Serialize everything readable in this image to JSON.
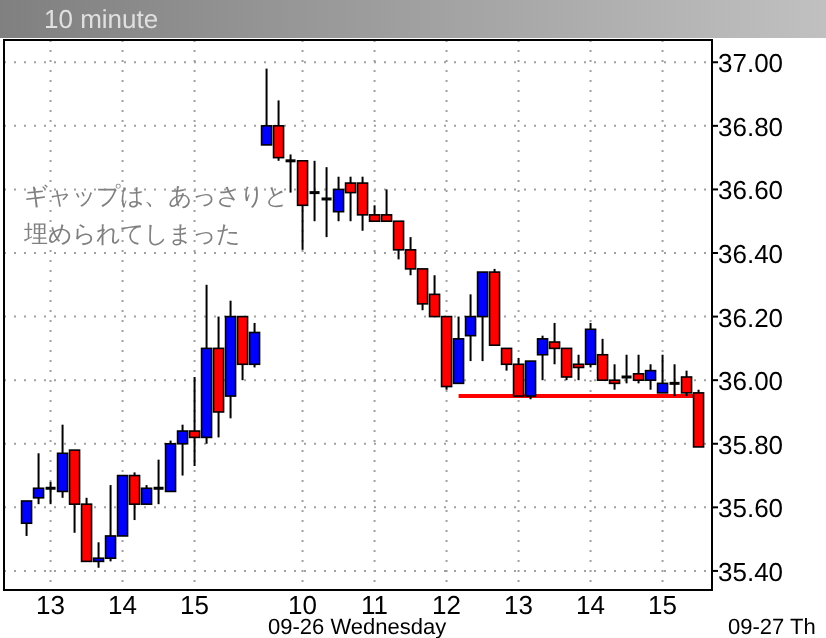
{
  "chart_data": {
    "type": "candlestick",
    "title": "10 minute",
    "categories": [
      null,
      null,
      "13",
      null,
      null,
      null,
      null,
      null,
      "14",
      null,
      null,
      null,
      null,
      null,
      "15",
      null,
      null,
      null,
      null,
      null,
      null,
      null,
      null,
      "10",
      null,
      null,
      null,
      null,
      null,
      "11",
      null,
      null,
      null,
      null,
      null,
      "12",
      null,
      null,
      null,
      null,
      null,
      "13",
      null,
      null,
      null,
      null,
      null,
      "14",
      null,
      null,
      null,
      null,
      null,
      "15",
      null,
      null,
      null
    ],
    "ohlc": [
      [
        35.55,
        35.62,
        35.51,
        35.62
      ],
      [
        35.63,
        35.77,
        35.61,
        35.66
      ],
      [
        35.66,
        35.68,
        35.61,
        35.66
      ],
      [
        35.65,
        35.86,
        35.63,
        35.77
      ],
      [
        35.78,
        35.78,
        35.52,
        35.61
      ],
      [
        35.61,
        35.63,
        35.43,
        35.43
      ],
      [
        35.43,
        35.49,
        35.41,
        35.44
      ],
      [
        35.44,
        35.67,
        35.43,
        35.51
      ],
      [
        35.51,
        35.7,
        35.51,
        35.7
      ],
      [
        35.7,
        35.71,
        35.56,
        35.61
      ],
      [
        35.61,
        35.67,
        35.61,
        35.66
      ],
      [
        35.66,
        35.75,
        35.61,
        35.66
      ],
      [
        35.65,
        35.81,
        35.65,
        35.8
      ],
      [
        35.8,
        35.86,
        35.7,
        35.84
      ],
      [
        35.84,
        36.01,
        35.73,
        35.82
      ],
      [
        35.82,
        36.3,
        35.8,
        36.1
      ],
      [
        36.1,
        36.2,
        35.82,
        35.9
      ],
      [
        35.95,
        36.25,
        35.88,
        36.2
      ],
      [
        36.2,
        36.2,
        36.0,
        36.05
      ],
      [
        36.05,
        36.18,
        36.04,
        36.15
      ],
      [
        36.74,
        36.98,
        36.74,
        36.8
      ],
      [
        36.8,
        36.88,
        36.69,
        36.7
      ],
      [
        36.69,
        36.71,
        36.59,
        36.69
      ],
      [
        36.69,
        36.69,
        36.41,
        36.55
      ],
      [
        36.59,
        36.69,
        36.5,
        36.59
      ],
      [
        36.57,
        36.67,
        36.45,
        36.57
      ],
      [
        36.53,
        36.64,
        36.5,
        36.6
      ],
      [
        36.62,
        36.64,
        36.5,
        36.59
      ],
      [
        36.62,
        36.64,
        36.47,
        36.52
      ],
      [
        36.52,
        36.55,
        36.5,
        36.5
      ],
      [
        36.52,
        36.6,
        36.5,
        36.5
      ],
      [
        36.5,
        36.5,
        36.38,
        36.41
      ],
      [
        36.41,
        36.45,
        36.33,
        36.35
      ],
      [
        36.35,
        36.35,
        36.22,
        36.24
      ],
      [
        36.27,
        36.33,
        36.2,
        36.2
      ],
      [
        36.2,
        36.2,
        35.97,
        35.98
      ],
      [
        35.99,
        36.2,
        35.99,
        36.13
      ],
      [
        36.14,
        36.27,
        36.06,
        36.2
      ],
      [
        36.2,
        36.34,
        36.06,
        36.34
      ],
      [
        36.34,
        36.35,
        36.11,
        36.11
      ],
      [
        36.1,
        36.1,
        36.03,
        36.05
      ],
      [
        36.05,
        36.07,
        35.95,
        35.95
      ],
      [
        35.95,
        36.06,
        35.94,
        36.06
      ],
      [
        36.08,
        36.14,
        36.0,
        36.13
      ],
      [
        36.12,
        36.18,
        36.05,
        36.1
      ],
      [
        36.1,
        36.1,
        36.0,
        36.01
      ],
      [
        36.05,
        36.08,
        36.0,
        36.04
      ],
      [
        36.05,
        36.18,
        36.04,
        36.16
      ],
      [
        36.08,
        36.13,
        36.0,
        36.0
      ],
      [
        36.0,
        36.05,
        35.97,
        35.99
      ],
      [
        36.01,
        36.08,
        35.99,
        36.01
      ],
      [
        36.02,
        36.08,
        35.99,
        36.0
      ],
      [
        36.0,
        36.05,
        35.97,
        36.03
      ],
      [
        35.96,
        36.08,
        35.96,
        35.99
      ],
      [
        35.99,
        36.05,
        35.95,
        35.99
      ],
      [
        36.01,
        36.03,
        35.95,
        35.96
      ],
      [
        35.96,
        35.97,
        35.79,
        35.79
      ]
    ],
    "colors": [
      "#0000ff",
      "#0000ff",
      "#000000",
      "#0000ff",
      "#ff0000",
      "#ff0000",
      "#0000ff",
      "#0000ff",
      "#0000ff",
      "#ff0000",
      "#0000ff",
      "#000000",
      "#0000ff",
      "#0000ff",
      "#ff0000",
      "#0000ff",
      "#ff0000",
      "#0000ff",
      "#ff0000",
      "#0000ff",
      "#0000ff",
      "#ff0000",
      "#000000",
      "#ff0000",
      "#000000",
      "#000000",
      "#0000ff",
      "#ff0000",
      "#ff0000",
      "#ff0000",
      "#ff0000",
      "#ff0000",
      "#ff0000",
      "#ff0000",
      "#ff0000",
      "#ff0000",
      "#0000ff",
      "#0000ff",
      "#0000ff",
      "#ff0000",
      "#ff0000",
      "#ff0000",
      "#0000ff",
      "#0000ff",
      "#ff0000",
      "#ff0000",
      "#ff0000",
      "#0000ff",
      "#ff0000",
      "#ff0000",
      "#000000",
      "#ff0000",
      "#0000ff",
      "#0000ff",
      "#000000",
      "#ff0000",
      "#ff0000"
    ],
    "series": [
      {
        "type": "line",
        "color": "#ff0000",
        "values": [
          null,
          null,
          null,
          null,
          null,
          null,
          null,
          null,
          null,
          null,
          null,
          null,
          null,
          null,
          null,
          null,
          null,
          null,
          null,
          null,
          null,
          null,
          null,
          null,
          null,
          null,
          null,
          null,
          null,
          null,
          null,
          null,
          null,
          null,
          null,
          null,
          35.95,
          35.95,
          35.95,
          35.95,
          35.95,
          35.95,
          35.95,
          35.95,
          35.95,
          35.95,
          35.95,
          35.95,
          35.95,
          35.95,
          35.95,
          35.95,
          35.95,
          35.95,
          35.95,
          35.95,
          35.95
        ]
      }
    ],
    "ylim": [
      35.34,
      37.07
    ],
    "yticks": [
      {
        "value": 35.4,
        "label": "35.40"
      },
      {
        "value": 35.6,
        "label": "35.60"
      },
      {
        "value": 35.8,
        "label": "35.80"
      },
      {
        "value": 36.0,
        "label": "36.00"
      },
      {
        "value": 36.2,
        "label": "36.20"
      },
      {
        "value": 36.4,
        "label": "36.40"
      },
      {
        "value": 36.6,
        "label": "36.60"
      },
      {
        "value": 36.8,
        "label": "36.80"
      },
      {
        "value": 37.0,
        "label": "37.00"
      }
    ],
    "grid": true,
    "annotations": [
      "ギャップは、あっさりと",
      "埋められてしまった",
      "09-26 Wednesday",
      "09-27 Th"
    ]
  }
}
